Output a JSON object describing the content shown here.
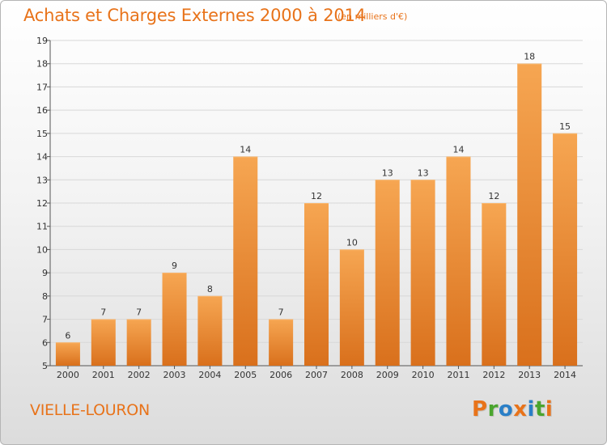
{
  "header": {
    "title": "Achats et Charges Externes 2000 à 2014",
    "subtitle": "(en milliers d'€)"
  },
  "footer": {
    "place": "VIELLE-LOURON",
    "logo_text": "Proxiti"
  },
  "colors": {
    "accent": "#e8731a",
    "bar_light": "#f6a652",
    "bar_dark": "#d9701c",
    "logo_letters": [
      "#e8731a",
      "#4aa52e",
      "#2a7fc7",
      "#e8731a",
      "#2a7fc7",
      "#4aa52e",
      "#e8731a"
    ]
  },
  "chart_data": {
    "type": "bar",
    "categories": [
      "2000",
      "2001",
      "2002",
      "2003",
      "2004",
      "2005",
      "2006",
      "2007",
      "2008",
      "2009",
      "2010",
      "2011",
      "2012",
      "2013",
      "2014"
    ],
    "values": [
      6,
      7,
      7,
      9,
      8,
      14,
      7,
      12,
      10,
      13,
      13,
      14,
      12,
      18,
      15
    ],
    "title": "Achats et Charges Externes 2000 à 2014",
    "xlabel": "",
    "ylabel": "",
    "ylim": [
      5,
      19
    ],
    "yticks": [
      5,
      6,
      7,
      8,
      9,
      10,
      11,
      12,
      13,
      14,
      15,
      16,
      17,
      18,
      19
    ],
    "grid": true,
    "data_labels": true
  }
}
